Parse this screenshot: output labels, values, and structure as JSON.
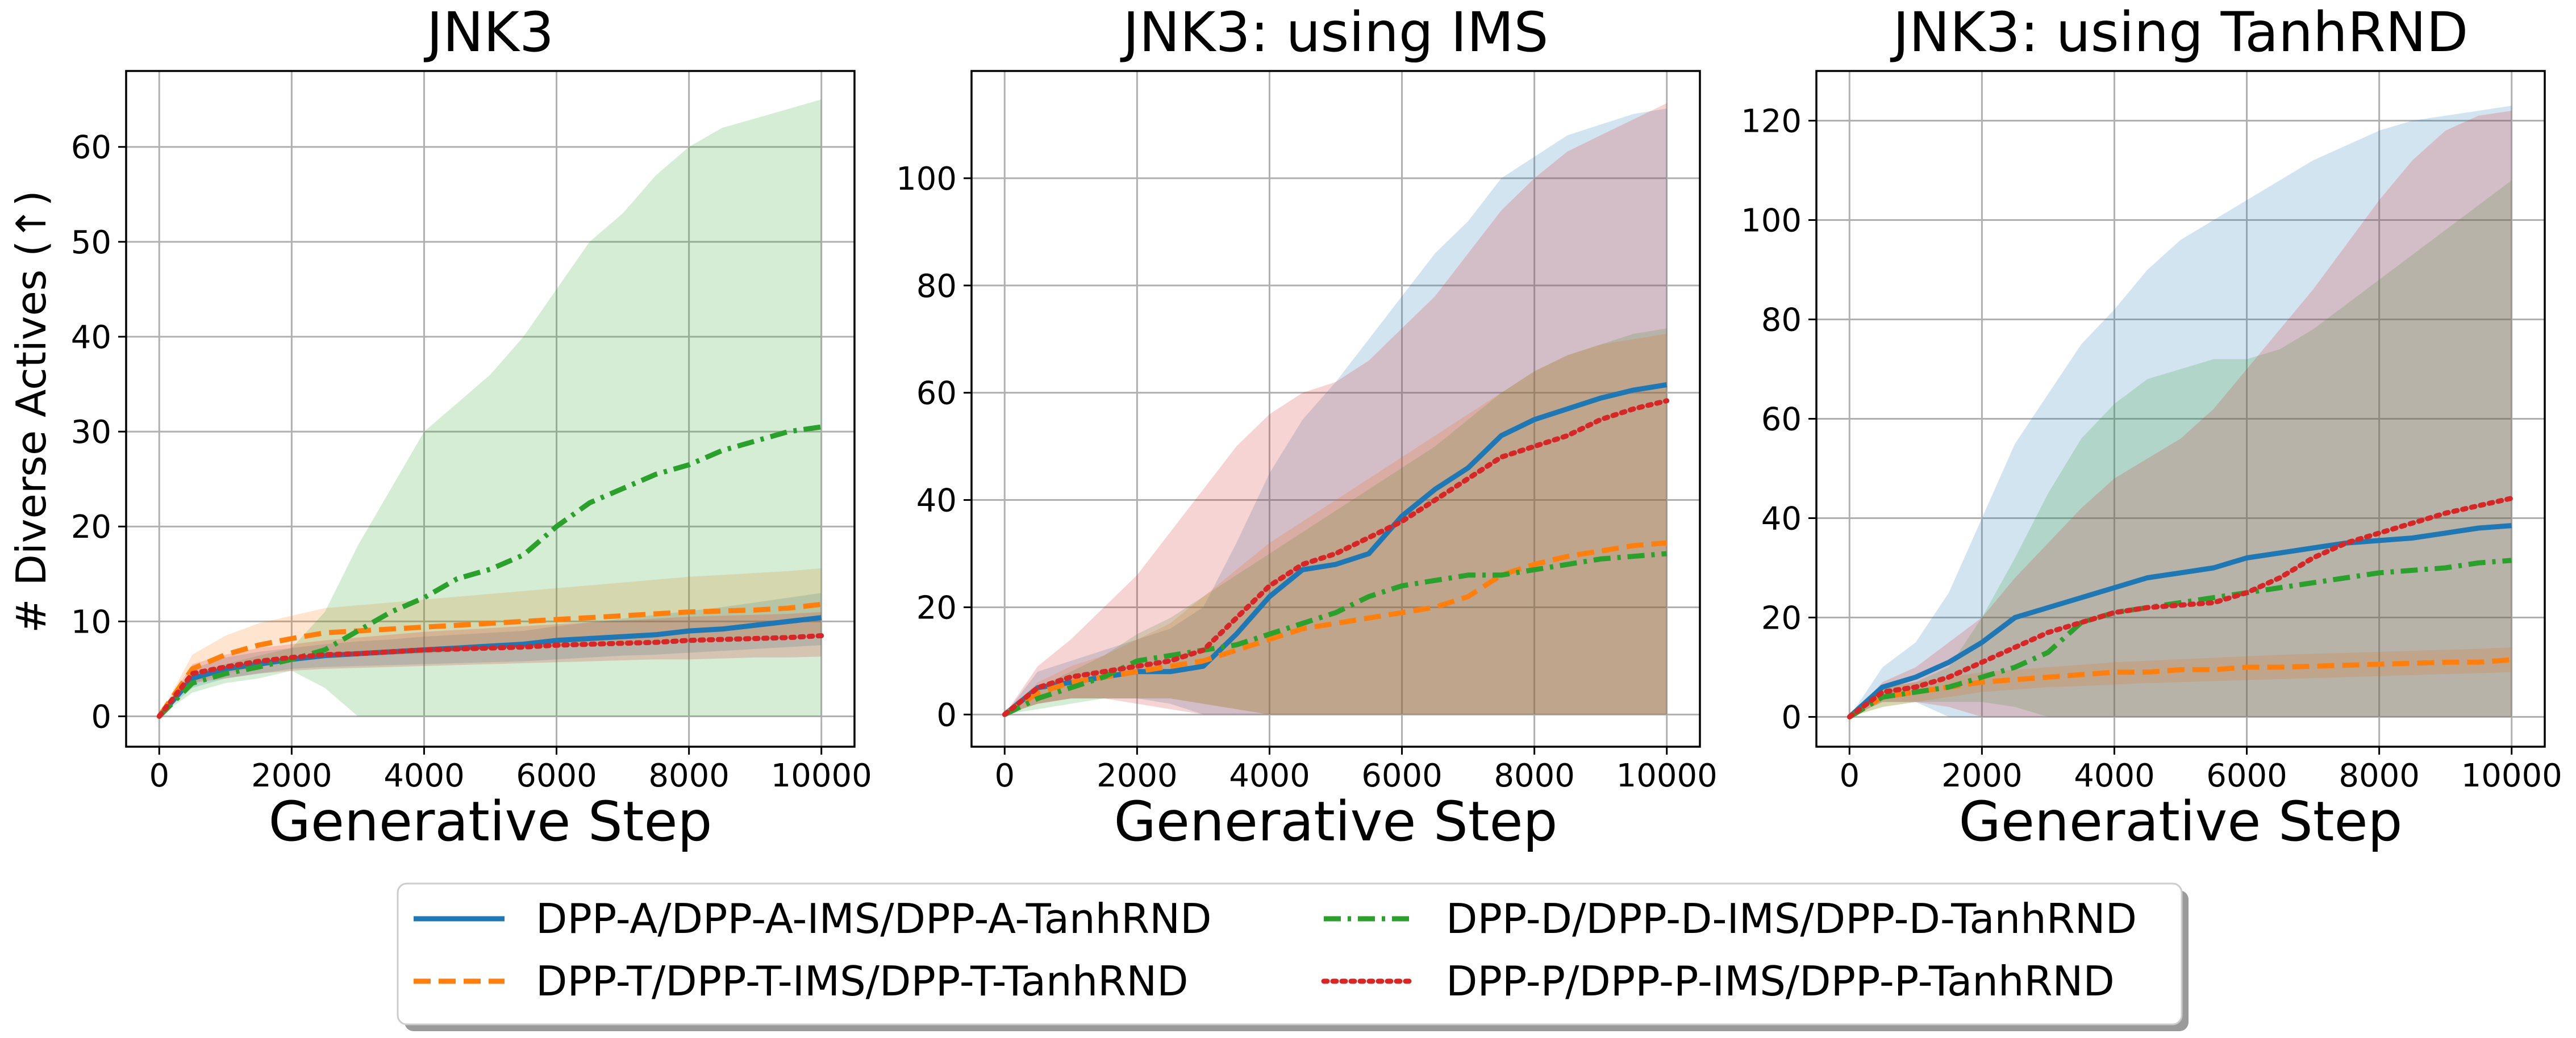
{
  "colors": {
    "DPP-A": "#1f77b4",
    "DPP-T": "#ff7f0e",
    "DPP-D": "#2ca02c",
    "DPP-P": "#d62728"
  },
  "legend": [
    {
      "key": "DPP-A",
      "label": "DPP-A/DPP-A-IMS/DPP-A-TanhRND",
      "style": "solid"
    },
    {
      "key": "DPP-T",
      "label": "DPP-T/DPP-T-IMS/DPP-T-TanhRND",
      "style": "dashed"
    },
    {
      "key": "DPP-D",
      "label": "DPP-D/DPP-D-IMS/DPP-D-TanhRND",
      "style": "dashdot"
    },
    {
      "key": "DPP-P",
      "label": "DPP-P/DPP-P-IMS/DPP-P-TanhRND",
      "style": "dotted"
    }
  ],
  "chart_data": [
    {
      "type": "line",
      "title": "JNK3",
      "xlabel": "Generative Step",
      "ylabel": "# Diverse Actives (↑)",
      "xlim": [
        -500,
        10500
      ],
      "ylim": [
        -3.2,
        68
      ],
      "xticks": [
        0,
        2000,
        4000,
        6000,
        8000,
        10000
      ],
      "yticks": [
        0,
        10,
        20,
        30,
        40,
        50,
        60
      ],
      "grid": true,
      "x": [
        0,
        500,
        1000,
        1500,
        2000,
        2500,
        3000,
        3500,
        4000,
        4500,
        5000,
        5500,
        6000,
        6500,
        7000,
        7500,
        8000,
        8500,
        9000,
        9500,
        10000
      ],
      "series": [
        {
          "name": "DPP-A",
          "mean": [
            0,
            4.0,
            5.0,
            5.5,
            6.0,
            6.4,
            6.6,
            6.8,
            7.0,
            7.2,
            7.4,
            7.6,
            8.0,
            8.2,
            8.4,
            8.6,
            9.0,
            9.2,
            9.6,
            10.0,
            10.4
          ],
          "lower": [
            0,
            3.0,
            4.0,
            4.5,
            5.0,
            5.2,
            5.3,
            5.4,
            5.5,
            5.6,
            5.7,
            5.8,
            6.0,
            6.2,
            6.4,
            6.5,
            6.7,
            6.9,
            7.1,
            7.3,
            7.5
          ],
          "upper": [
            0,
            5.0,
            6.2,
            6.8,
            7.2,
            7.6,
            7.9,
            8.1,
            8.4,
            8.6,
            8.8,
            9.0,
            9.5,
            9.9,
            10.3,
            10.7,
            11.1,
            11.5,
            12.0,
            12.5,
            13.0
          ]
        },
        {
          "name": "DPP-T",
          "mean": [
            0,
            5.0,
            6.5,
            7.5,
            8.2,
            8.8,
            9.0,
            9.2,
            9.4,
            9.6,
            9.8,
            10.0,
            10.2,
            10.4,
            10.6,
            10.8,
            11.0,
            11.1,
            11.2,
            11.4,
            11.8
          ],
          "lower": [
            0,
            3.5,
            4.5,
            5.2,
            5.8,
            6.2,
            6.4,
            6.5,
            6.6,
            6.8,
            7.0,
            7.1,
            7.3,
            7.5,
            7.7,
            7.9,
            8.1,
            8.2,
            8.3,
            8.5,
            8.7
          ],
          "upper": [
            0,
            6.5,
            8.5,
            9.8,
            10.6,
            11.4,
            11.7,
            12.0,
            12.3,
            12.6,
            12.9,
            13.2,
            13.5,
            13.8,
            14.1,
            14.4,
            14.7,
            14.9,
            15.1,
            15.3,
            15.6
          ]
        },
        {
          "name": "DPP-D",
          "mean": [
            0,
            3.5,
            4.5,
            5.2,
            6.0,
            7.0,
            9.0,
            11.0,
            12.5,
            14.5,
            15.5,
            17.0,
            20.0,
            22.5,
            24.0,
            25.5,
            26.5,
            28.0,
            29.0,
            30.0,
            30.5
          ],
          "lower": [
            0,
            2.5,
            3.5,
            4.0,
            4.8,
            3.0,
            0,
            0,
            0,
            0,
            0,
            0,
            0,
            0,
            0,
            0,
            0,
            0,
            0,
            0,
            0
          ],
          "upper": [
            0,
            4.5,
            5.5,
            6.4,
            7.2,
            11.0,
            18.0,
            24.0,
            30.0,
            33.0,
            36.0,
            40.0,
            45.0,
            50.0,
            53.0,
            57.0,
            60.0,
            62.0,
            63.0,
            64.0,
            65.0
          ]
        },
        {
          "name": "DPP-P",
          "mean": [
            0,
            4.5,
            5.2,
            5.8,
            6.2,
            6.5,
            6.6,
            6.8,
            7.0,
            7.1,
            7.2,
            7.3,
            7.5,
            7.6,
            7.7,
            7.8,
            8.0,
            8.1,
            8.2,
            8.3,
            8.5
          ],
          "lower": [
            0,
            3.5,
            4.0,
            4.5,
            4.8,
            5.0,
            5.1,
            5.2,
            5.3,
            5.4,
            5.5,
            5.6,
            5.7,
            5.8,
            5.9,
            6.0,
            6.0,
            6.1,
            6.2,
            6.2,
            6.3
          ],
          "upper": [
            0,
            5.5,
            6.5,
            7.2,
            7.6,
            8.0,
            8.3,
            8.6,
            8.9,
            9.1,
            9.3,
            9.5,
            9.7,
            9.9,
            10.1,
            10.3,
            10.5,
            10.6,
            10.7,
            10.8,
            11.0
          ]
        }
      ]
    },
    {
      "type": "line",
      "title": "JNK3: using IMS",
      "xlabel": "Generative Step",
      "ylabel": "",
      "xlim": [
        -500,
        10500
      ],
      "ylim": [
        -6,
        120
      ],
      "xticks": [
        0,
        2000,
        4000,
        6000,
        8000,
        10000
      ],
      "yticks": [
        0,
        20,
        40,
        60,
        80,
        100
      ],
      "grid": true,
      "x": [
        0,
        500,
        1000,
        1500,
        2000,
        2500,
        3000,
        3500,
        4000,
        4500,
        5000,
        5500,
        6000,
        6500,
        7000,
        7500,
        8000,
        8500,
        9000,
        9500,
        10000
      ],
      "series": [
        {
          "name": "DPP-A",
          "mean": [
            0,
            5,
            6,
            7,
            8,
            8,
            9,
            15,
            22,
            27,
            28,
            30,
            37,
            42,
            46,
            52,
            55,
            57,
            59,
            60.5,
            61.5
          ],
          "lower": [
            0,
            2,
            3,
            3,
            3,
            2,
            0,
            0,
            0,
            0,
            0,
            0,
            0,
            0,
            0,
            0,
            0,
            0,
            0,
            0,
            0
          ],
          "upper": [
            0,
            8,
            10,
            12,
            14,
            16,
            20,
            32,
            45,
            55,
            62,
            70,
            78,
            86,
            92,
            100,
            104,
            108,
            110,
            112,
            113
          ]
        },
        {
          "name": "DPP-T",
          "mean": [
            0,
            4,
            6,
            7,
            8,
            9,
            10,
            12,
            14,
            16,
            17,
            18,
            19,
            20,
            22,
            26,
            28,
            29.5,
            30.5,
            31.5,
            32
          ],
          "lower": [
            0,
            2,
            3,
            3,
            3,
            3,
            2,
            1,
            0,
            0,
            0,
            0,
            0,
            0,
            0,
            0,
            0,
            0,
            0,
            0,
            0
          ],
          "upper": [
            0,
            6,
            9,
            11,
            14,
            17,
            22,
            27,
            32,
            36,
            40,
            44,
            48,
            52,
            56,
            60,
            64,
            67,
            69,
            70,
            71
          ]
        },
        {
          "name": "DPP-D",
          "mean": [
            0,
            3,
            5,
            7,
            10,
            11,
            12,
            13,
            15,
            17,
            19,
            22,
            24,
            25,
            26,
            26,
            27,
            28,
            29,
            29.5,
            30
          ],
          "lower": [
            0,
            1,
            2,
            3,
            3,
            3,
            2,
            1,
            0,
            0,
            0,
            0,
            0,
            0,
            0,
            0,
            0,
            0,
            0,
            0,
            0
          ],
          "upper": [
            0,
            5,
            8,
            11,
            15,
            18,
            22,
            26,
            30,
            34,
            38,
            42,
            46,
            50,
            55,
            60,
            64,
            67,
            69,
            71,
            72
          ]
        },
        {
          "name": "DPP-P",
          "mean": [
            0,
            5,
            7,
            8,
            9,
            10,
            12,
            18,
            24,
            28,
            30,
            33,
            36,
            40,
            44,
            48,
            50,
            52,
            55,
            57,
            58.5
          ],
          "lower": [
            0,
            2,
            3,
            3,
            2,
            1,
            0,
            0,
            0,
            0,
            0,
            0,
            0,
            0,
            0,
            0,
            0,
            0,
            0,
            0,
            0
          ],
          "upper": [
            0,
            9,
            14,
            20,
            26,
            34,
            42,
            50,
            56,
            60,
            62,
            66,
            72,
            78,
            86,
            94,
            100,
            105,
            108,
            111,
            114
          ]
        }
      ]
    },
    {
      "type": "line",
      "title": "JNK3: using TanhRND",
      "xlabel": "Generative Step",
      "ylabel": "",
      "xlim": [
        -500,
        10500
      ],
      "ylim": [
        -6,
        130
      ],
      "xticks": [
        0,
        2000,
        4000,
        6000,
        8000,
        10000
      ],
      "yticks": [
        0,
        20,
        40,
        60,
        80,
        100,
        120
      ],
      "grid": true,
      "x": [
        0,
        500,
        1000,
        1500,
        2000,
        2500,
        3000,
        3500,
        4000,
        4500,
        5000,
        5500,
        6000,
        6500,
        7000,
        7500,
        8000,
        8500,
        9000,
        9500,
        10000
      ],
      "series": [
        {
          "name": "DPP-A",
          "mean": [
            0,
            6,
            8,
            11,
            15,
            20,
            22,
            24,
            26,
            28,
            29,
            30,
            32,
            33,
            34,
            35,
            35.5,
            36,
            37,
            38,
            38.5
          ],
          "lower": [
            0,
            3,
            3,
            0,
            0,
            0,
            0,
            0,
            0,
            0,
            0,
            0,
            0,
            0,
            0,
            0,
            0,
            0,
            0,
            0,
            0
          ],
          "upper": [
            0,
            10,
            15,
            25,
            40,
            55,
            65,
            75,
            82,
            90,
            96,
            100,
            104,
            108,
            112,
            115,
            118,
            120,
            121,
            122,
            123
          ]
        },
        {
          "name": "DPP-T",
          "mean": [
            0,
            4,
            5,
            6,
            7,
            7.5,
            8,
            8.5,
            9,
            9,
            9.5,
            9.5,
            10,
            10,
            10.2,
            10.4,
            10.6,
            10.8,
            11,
            11,
            11.5
          ],
          "lower": [
            0,
            2,
            3,
            4,
            5,
            5.5,
            6,
            6.2,
            6.5,
            6.8,
            7,
            7.2,
            7.4,
            7.6,
            7.8,
            8,
            8.2,
            8.4,
            8.6,
            8.8,
            9
          ],
          "upper": [
            0,
            6,
            7,
            8,
            9,
            9.5,
            10,
            10.5,
            11,
            11.3,
            11.6,
            11.9,
            12.2,
            12.5,
            12.7,
            12.9,
            13.1,
            13.3,
            13.5,
            13.7,
            14
          ]
        },
        {
          "name": "DPP-D",
          "mean": [
            0,
            4,
            5,
            6,
            8,
            10,
            13,
            19,
            21,
            22,
            23,
            24,
            25,
            26,
            27,
            28,
            29,
            29.5,
            30,
            31,
            31.5
          ],
          "lower": [
            0,
            2,
            3,
            3,
            3,
            2,
            0,
            0,
            0,
            0,
            0,
            0,
            0,
            0,
            0,
            0,
            0,
            0,
            0,
            0,
            0
          ],
          "upper": [
            0,
            6,
            7,
            10,
            20,
            32,
            45,
            56,
            63,
            68,
            70,
            72,
            72,
            74,
            78,
            83,
            88,
            93,
            98,
            103,
            108
          ]
        },
        {
          "name": "DPP-P",
          "mean": [
            0,
            5,
            6,
            8,
            11,
            14,
            17,
            19,
            21,
            22,
            22.5,
            23,
            25,
            28,
            32,
            35,
            37,
            39,
            41,
            42.5,
            44
          ],
          "lower": [
            0,
            3,
            3,
            2,
            0,
            0,
            0,
            0,
            0,
            0,
            0,
            0,
            0,
            0,
            0,
            0,
            0,
            0,
            0,
            0,
            0
          ],
          "upper": [
            0,
            7,
            10,
            15,
            20,
            28,
            35,
            42,
            48,
            52,
            56,
            62,
            70,
            78,
            86,
            95,
            104,
            112,
            118,
            121,
            122
          ]
        }
      ]
    }
  ]
}
